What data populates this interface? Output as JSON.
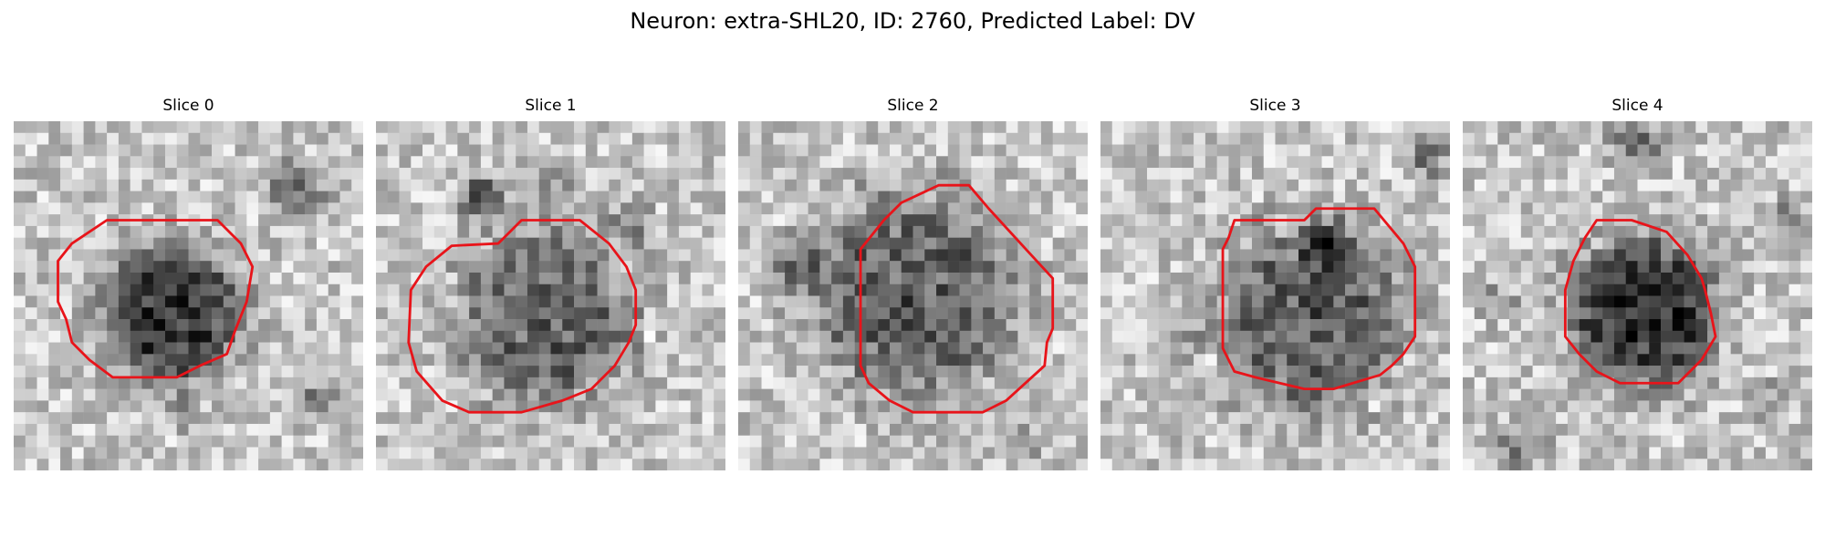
{
  "figure": {
    "title": "Neuron: extra-SHL20, ID: 2760, Predicted Label: DV"
  },
  "slices": [
    {
      "title": "Slice 0"
    },
    {
      "title": "Slice 1"
    },
    {
      "title": "Slice 2"
    },
    {
      "title": "Slice 3"
    },
    {
      "title": "Slice 4"
    }
  ],
  "colors": {
    "contour": "#e8141a",
    "background": "#ffffff"
  }
}
